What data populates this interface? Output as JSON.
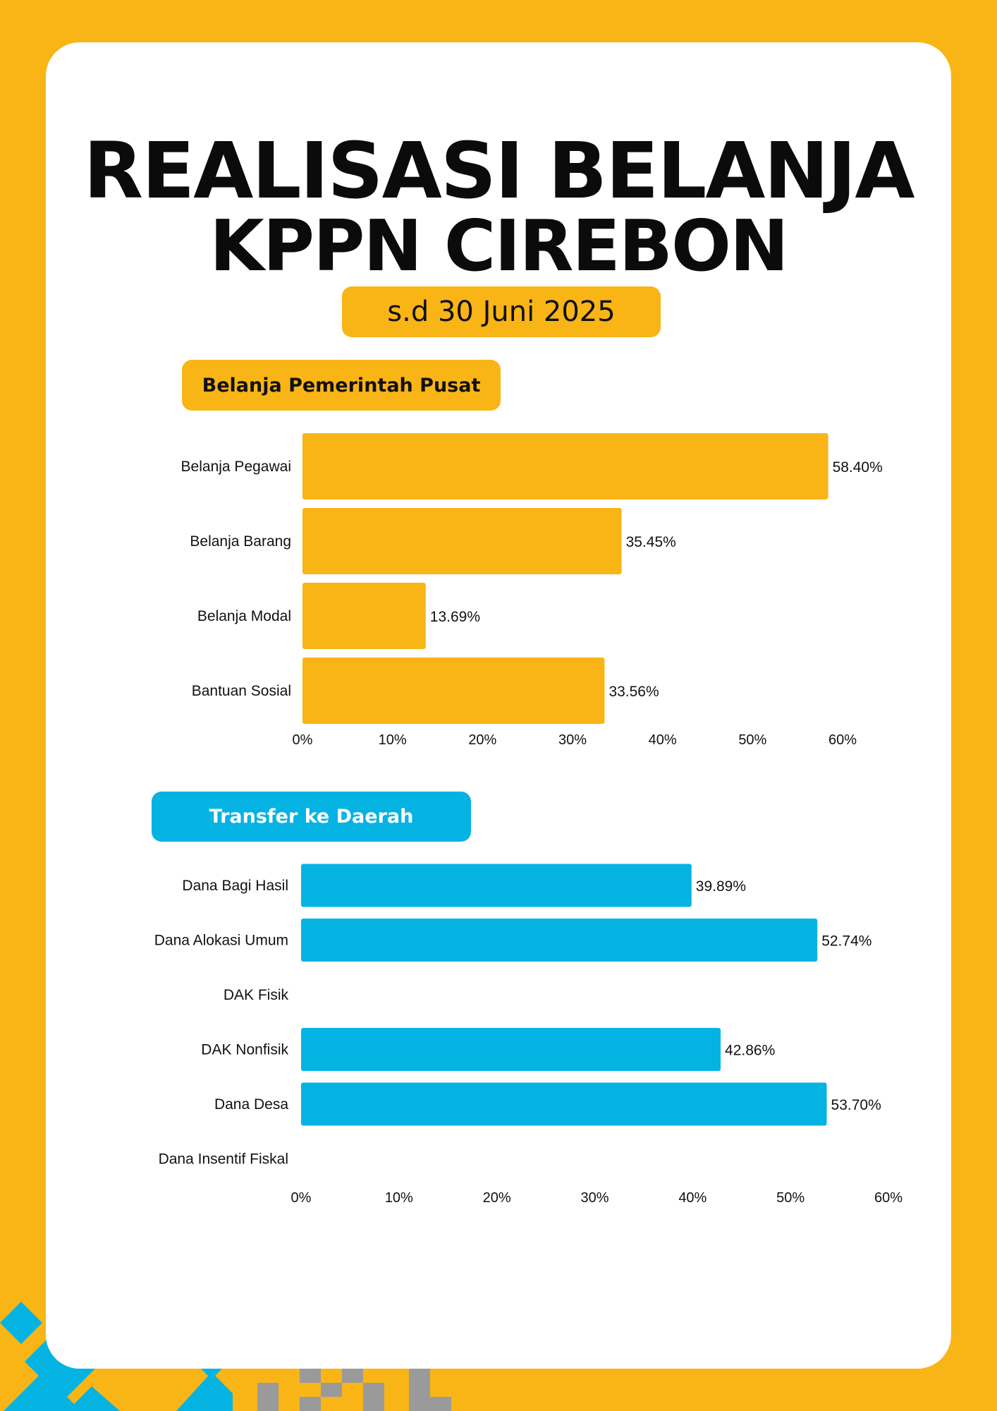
{
  "header": {
    "title_line1": "REALISASI BELANJA",
    "title_line2": "KPPN CIREBON",
    "date_badge": "s.d 30 Juni 2025"
  },
  "colors": {
    "background": "#F9B516",
    "section1": "#F9B516",
    "section2": "#05B3E3",
    "pixel_gray": "#9A9A9A"
  },
  "sections": {
    "pusat_title": "Belanja Pemerintah Pusat",
    "tkd_title": "Transfer ke Daerah"
  },
  "chart_data": [
    {
      "type": "bar",
      "orientation": "horizontal",
      "title": "Belanja Pemerintah Pusat",
      "categories": [
        "Belanja Pegawai",
        "Belanja Barang",
        "Belanja Modal",
        "Bantuan Sosial"
      ],
      "values": [
        58.4,
        35.45,
        13.69,
        33.56
      ],
      "value_labels": [
        "58.40%",
        "35.45%",
        "13.69%",
        "33.56%"
      ],
      "xlim": [
        0,
        60
      ],
      "ticks": [
        "0%",
        "10%",
        "20%",
        "30%",
        "40%",
        "50%",
        "60%"
      ],
      "color": "#F9B516"
    },
    {
      "type": "bar",
      "orientation": "horizontal",
      "title": "Transfer ke Daerah",
      "categories": [
        "Dana Bagi Hasil",
        "Dana Alokasi Umum",
        "DAK Fisik",
        "DAK Nonfisik",
        "Dana Desa",
        "Dana Insentif Fiskal"
      ],
      "values": [
        39.89,
        52.74,
        null,
        42.86,
        53.7,
        null
      ],
      "value_labels": [
        "39.89%",
        "52.74%",
        "",
        "42.86%",
        "53.70%",
        ""
      ],
      "xlim": [
        0,
        60
      ],
      "ticks": [
        "0%",
        "10%",
        "20%",
        "30%",
        "40%",
        "50%",
        "60%"
      ],
      "color": "#05B3E3"
    }
  ]
}
